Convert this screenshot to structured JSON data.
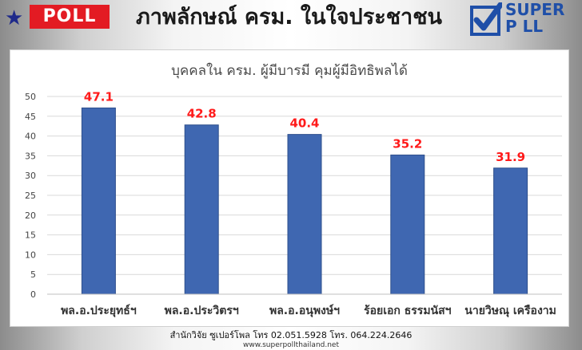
{
  "header": {
    "badge_label": "POLL",
    "title": "ภาพลักษณ์ ครม. ในใจประชาชน",
    "logo_line1": "SUPER",
    "logo_line2": "P LL"
  },
  "chart_data": {
    "type": "bar",
    "title": "บุคคลใน ครม. ผู้มีบารมี คุมผู้มีอิทธิพลได้",
    "categories": [
      "พล.อ.ประยุทธ์ฯ",
      "พล.อ.ประวิตรฯ",
      "พล.อ.อนุพงษ์ฯ",
      "ร้อยเอก ธรรมนัสฯ",
      "นายวิษณุ เครืองาม"
    ],
    "values": [
      47.1,
      42.8,
      40.4,
      35.2,
      31.9
    ],
    "value_labels": [
      "47.1",
      "42.8",
      "40.4",
      "35.2",
      "31.9"
    ],
    "yticks": [
      "0",
      "5",
      "10",
      "15",
      "20",
      "25",
      "30",
      "35",
      "40",
      "45",
      "50"
    ],
    "ylim": [
      0,
      50
    ],
    "grid": true,
    "colors": {
      "bar": "#3f67b1",
      "bar_dark": "#2e4f8c",
      "value_label": "#ff1a1a"
    }
  },
  "footer": {
    "line1": "สำนักวิจัย ซูเปอร์โพล โทร 02.051.5928  โทร. 064.224.2646",
    "line2": "www.superpollthailand.net"
  }
}
